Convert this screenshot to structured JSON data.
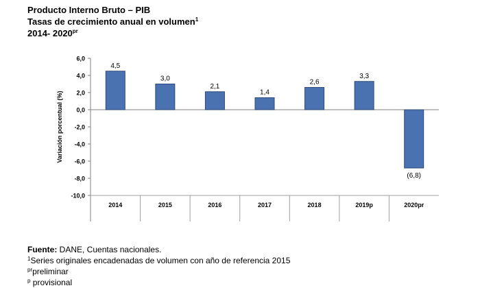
{
  "title": {
    "line1": "Producto Interno Bruto – PIB",
    "line2": "Tasas de crecimiento anual en volumen",
    "line2_sup": "1",
    "line3": "2014- 2020",
    "line3_sup": "pr"
  },
  "chart_data": {
    "type": "bar",
    "categories": [
      "2014",
      "2015",
      "2016",
      "2017",
      "2018",
      "2019p",
      "2020pr"
    ],
    "values": [
      4.5,
      3.0,
      2.1,
      1.4,
      2.6,
      3.3,
      -6.8
    ],
    "data_labels": [
      "4,5",
      "3,0",
      "2,1",
      "1,4",
      "2,6",
      "3,3",
      "(6,8)"
    ],
    "ylabel": "Variación porcentual (%)",
    "ylim": [
      -10,
      6
    ],
    "yticks": [
      6,
      4,
      2,
      0,
      -2,
      -4,
      -6,
      -8,
      -10
    ],
    "ytick_labels": [
      "6,0",
      "4,0",
      "2,0",
      "0,0",
      "-2,0",
      "-4,0",
      "-6,0",
      "-8,0",
      "-10,0"
    ],
    "bar_color": "#4a72b0",
    "bar_edge_color": "#2c4a7a",
    "grid": false,
    "legend": "none"
  },
  "notes": {
    "source_label": "Fuente:",
    "source_text": " DANE, Cuentas nacionales.",
    "note1_sup": "1",
    "note1_text": "Series originales encadenadas de volumen con año de referencia 2015",
    "note2_sup": "pr",
    "note2_text": "preliminar",
    "note3_sup": "p",
    "note3_text": " provisional"
  }
}
